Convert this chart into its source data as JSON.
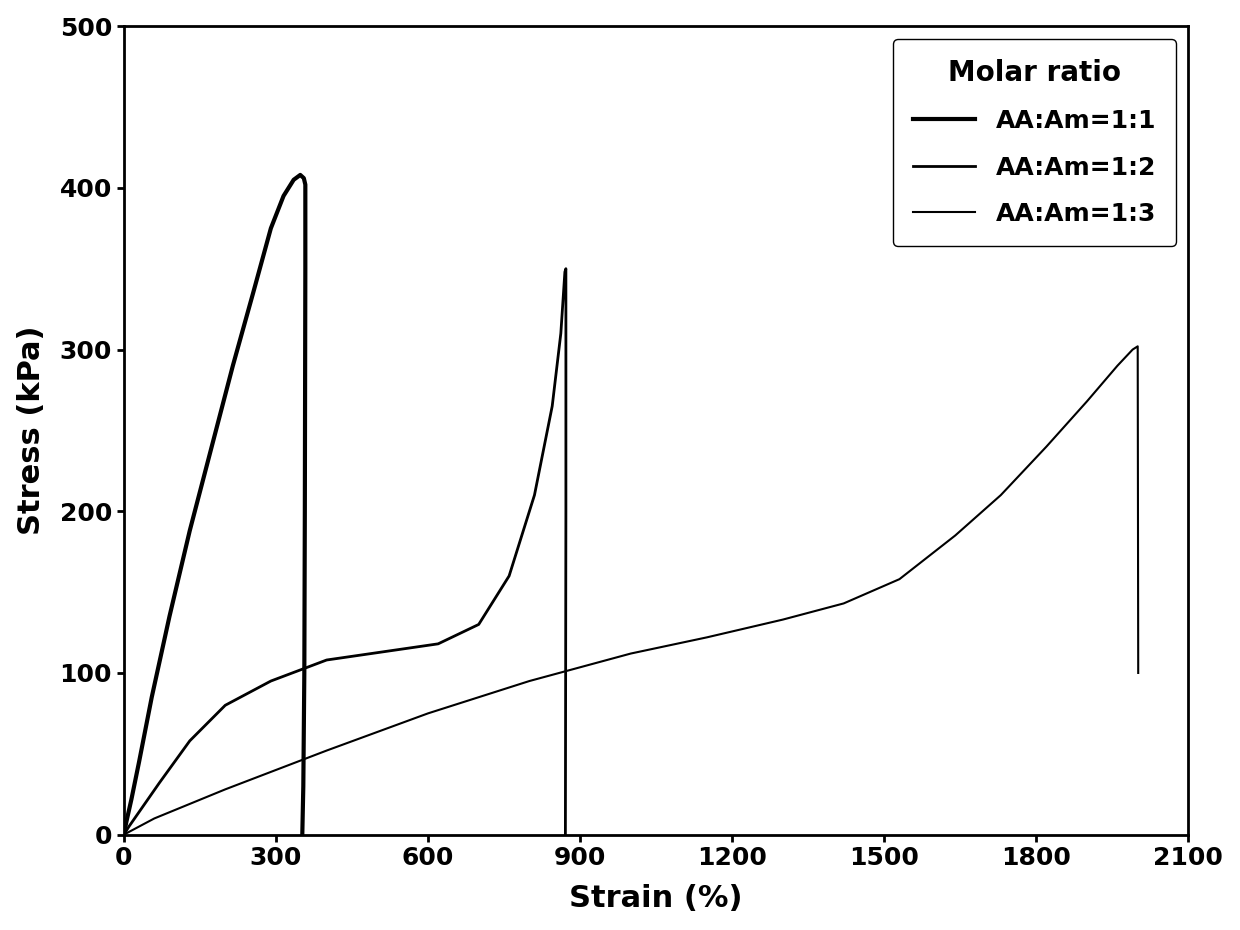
{
  "title": "",
  "xlabel": "Strain (%)",
  "ylabel": "Stress (kPa)",
  "xlim": [
    0,
    2100
  ],
  "ylim": [
    0,
    500
  ],
  "xticks": [
    0,
    300,
    600,
    900,
    1200,
    1500,
    1800,
    2100
  ],
  "yticks": [
    0,
    100,
    200,
    300,
    400,
    500
  ],
  "legend_title": "Molar ratio",
  "legend_labels": [
    "AA:Am=1:1",
    "AA:Am=1:2",
    "AA:Am=1:3"
  ],
  "line_color": "#000000",
  "background_color": "#ffffff",
  "curve1": {
    "x": [
      0,
      5,
      15,
      30,
      55,
      90,
      130,
      175,
      215,
      255,
      290,
      315,
      335,
      348,
      355,
      358,
      358,
      357,
      356,
      354,
      352
    ],
    "y": [
      0,
      8,
      22,
      45,
      85,
      135,
      188,
      242,
      290,
      335,
      375,
      395,
      405,
      408,
      406,
      402,
      350,
      200,
      100,
      30,
      0
    ],
    "linewidth": 3.0
  },
  "curve2": {
    "x": [
      0,
      10,
      30,
      70,
      130,
      200,
      290,
      400,
      510,
      620,
      700,
      760,
      810,
      845,
      862,
      870,
      872,
      872,
      871
    ],
    "y": [
      0,
      5,
      14,
      32,
      58,
      80,
      95,
      108,
      113,
      118,
      130,
      160,
      210,
      265,
      310,
      348,
      350,
      200,
      0
    ],
    "linewidth": 2.0
  },
  "curve3": {
    "x": [
      0,
      60,
      200,
      400,
      600,
      800,
      1000,
      1150,
      1300,
      1420,
      1530,
      1640,
      1730,
      1820,
      1900,
      1960,
      1990,
      2000,
      2001,
      2001
    ],
    "y": [
      0,
      10,
      28,
      52,
      75,
      95,
      112,
      122,
      133,
      143,
      158,
      185,
      210,
      240,
      268,
      290,
      300,
      302,
      105,
      100
    ],
    "linewidth": 1.5
  }
}
